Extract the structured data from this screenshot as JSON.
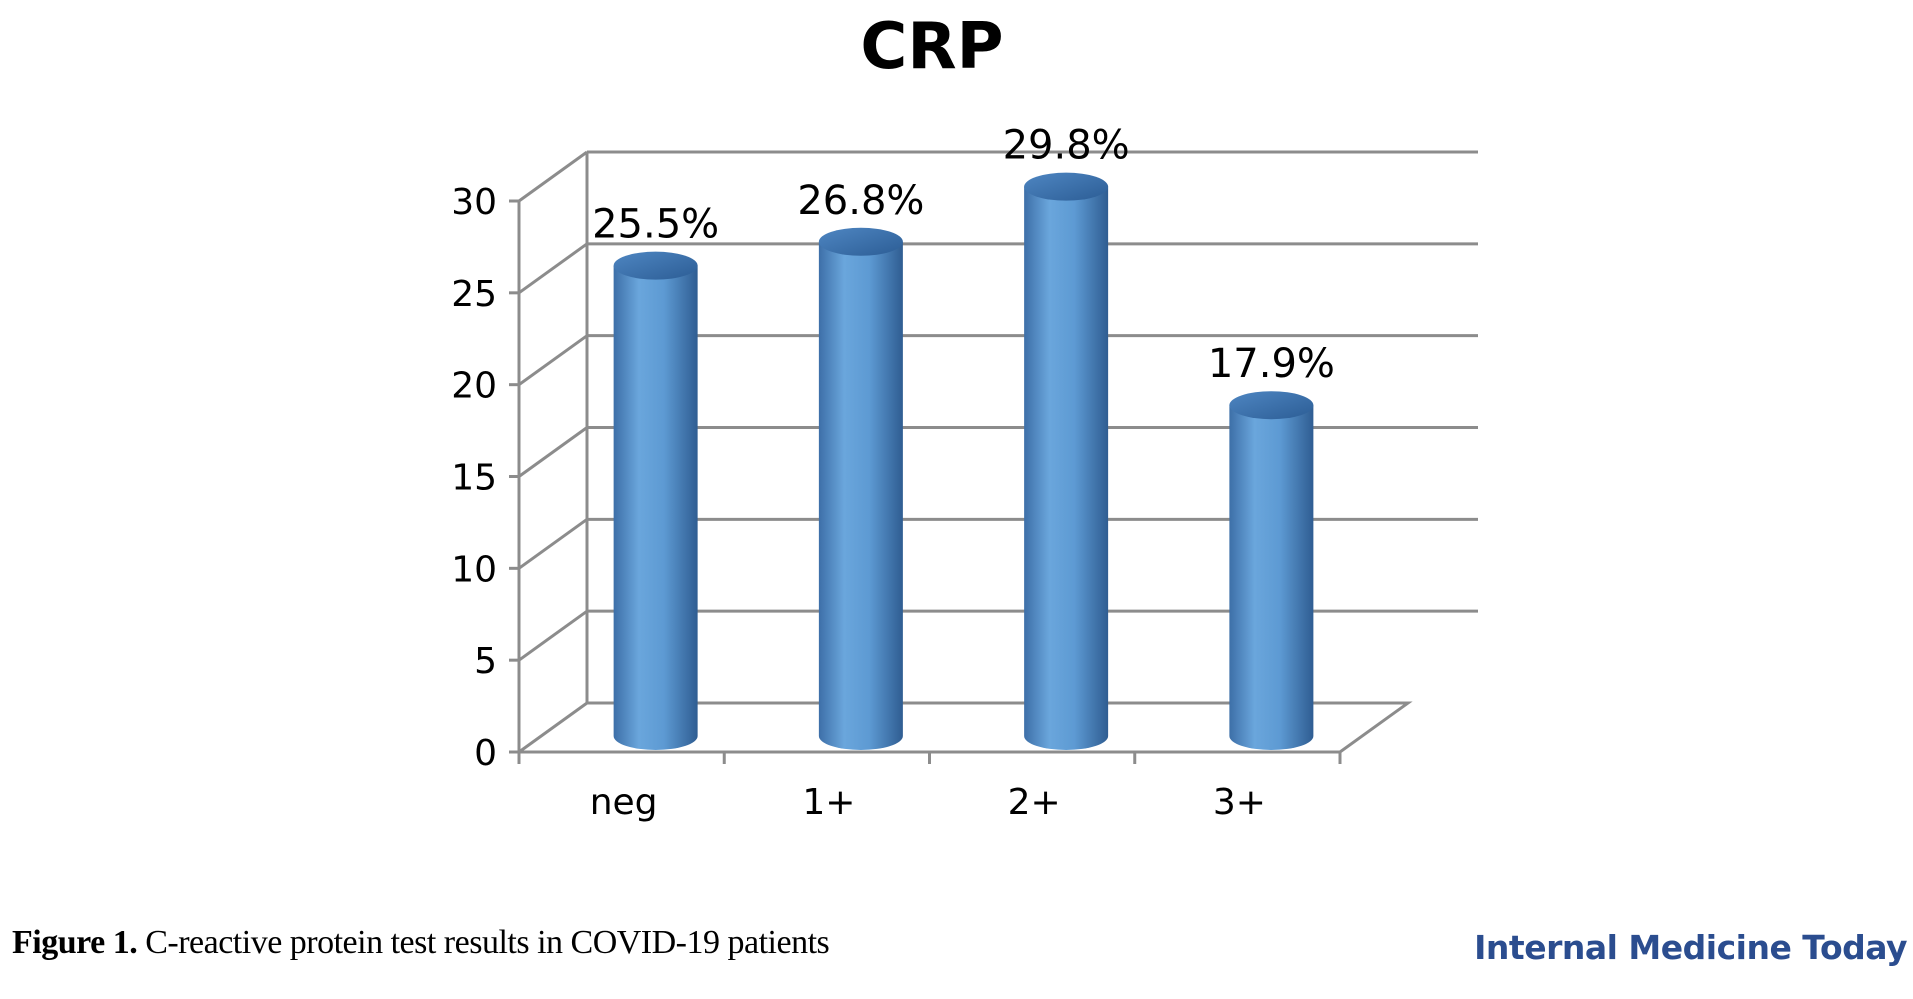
{
  "chart_data": {
    "type": "bar",
    "title": "CRP",
    "categories": [
      "neg",
      "1+",
      "2+",
      "3+"
    ],
    "series": [
      {
        "values": [
          25.5,
          26.8,
          29.8,
          17.9
        ]
      }
    ],
    "data_labels": [
      "25.5%",
      "26.8%",
      "29.8%",
      "17.9%"
    ],
    "y_ticks": [
      "0",
      "5",
      "10",
      "15",
      "20",
      "25",
      "30"
    ],
    "ylim": [
      0,
      30
    ],
    "grid": true,
    "bar_style": "3d-cylinder",
    "bar_color": "#5b9bd5",
    "xlabel": "",
    "ylabel": ""
  },
  "caption": {
    "label": "Figure 1.",
    "text": " C-reactive protein test results in COVID-19 patients"
  },
  "brand": {
    "name": "Internal Medicine Today",
    "color": "#2b4d8f"
  }
}
